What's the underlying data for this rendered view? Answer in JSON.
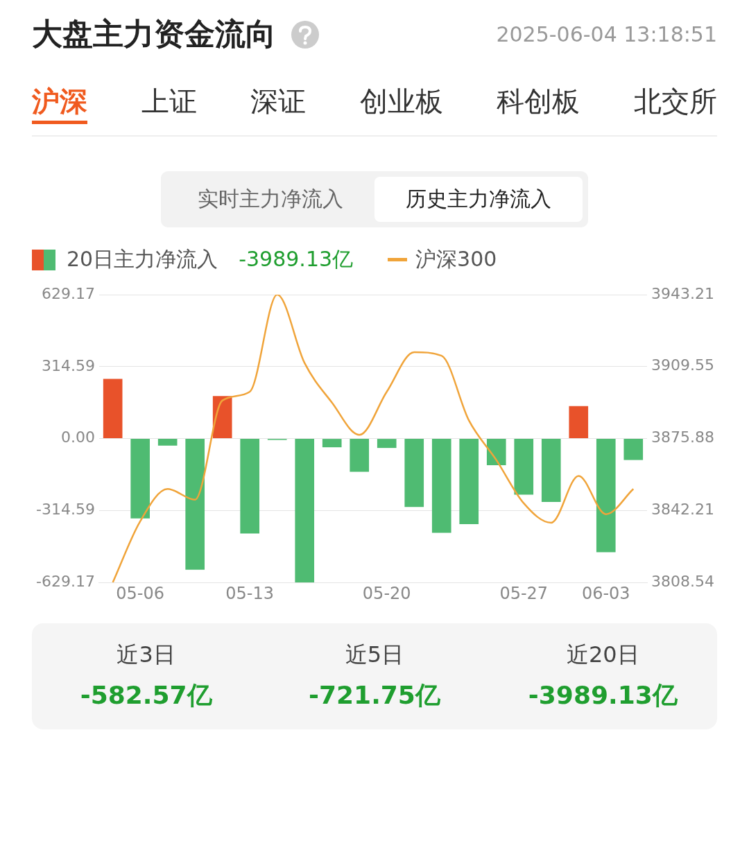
{
  "chart_data": {
    "type": "bar",
    "title": "大盘主力资金流向",
    "subtitle": "2025-06-04 13:18:51",
    "annotations": [
      "沪深",
      "上证",
      "深证",
      "创业板",
      "科创板",
      "北交所",
      "实时主力净流入",
      "历史主力净流入",
      "-3989.13亿",
      "近3日",
      "-582.57亿",
      "近5日",
      "-721.75亿",
      "近20日",
      "-3989.13亿"
    ],
    "categories": [
      null,
      "05-06",
      null,
      null,
      null,
      "05-13",
      null,
      null,
      null,
      null,
      "05-20",
      null,
      null,
      null,
      null,
      "05-27",
      null,
      null,
      "06-03",
      null
    ],
    "series": [
      {
        "name": "20日主力净流入",
        "colors": [
          "#e8522a",
          "#4fbb72",
          "#4fbb72",
          "#4fbb72",
          "#e8522a",
          "#4fbb72",
          "#4fbb72",
          "#4fbb72",
          "#4fbb72",
          "#4fbb72",
          "#4fbb72",
          "#4fbb72",
          "#4fbb72",
          "#4fbb72",
          "#4fbb72",
          "#4fbb72",
          "#4fbb72",
          "#e8522a",
          "#4fbb72",
          "#4fbb72"
        ],
        "values": [
          261,
          -349,
          -31,
          -573,
          186,
          -415,
          -6,
          -629,
          -38,
          -145,
          -41,
          -299,
          -412,
          -374,
          -116,
          -245,
          -277,
          142,
          -497,
          -94
        ]
      },
      {
        "name": "沪深300",
        "type": "line",
        "axis": "y2",
        "color": "#f0a43a",
        "values": [
          3808.6,
          3837.2,
          3852.3,
          3847.3,
          3893.7,
          3897.8,
          3943.2,
          3911.2,
          3892.7,
          3877.6,
          3897.8,
          3916.3,
          3914.6,
          3884.3,
          3865.8,
          3845.6,
          3836.5,
          3858.4,
          3840.5,
          3852.3
        ]
      }
    ],
    "ylim": [
      -629.17,
      629.17
    ],
    "yticks": [
      -629.17,
      -314.59,
      {
        "value": 0,
        "label": "0.00"
      },
      314.59,
      629.17
    ],
    "y2lim": [
      3808.54,
      3943.21
    ],
    "y2ticks": [
      3808.54,
      3842.21,
      3875.88,
      3909.55,
      3943.21
    ],
    "grid": "y",
    "legend": "top left",
    "marker": "none"
  }
}
